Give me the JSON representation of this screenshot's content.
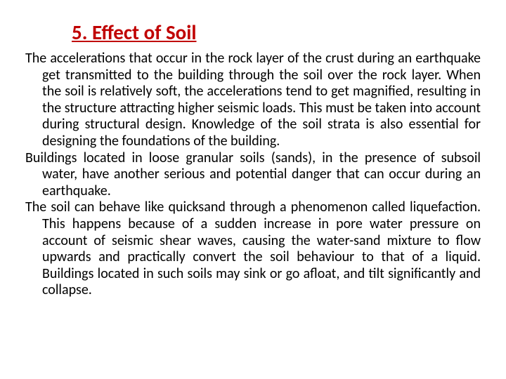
{
  "title": "5. Effect of Soil",
  "paragraphs": [
    "The accelerations that occur in the rock layer of the crust during an earthquake get transmitted to the building through the soil over the rock layer. When the soil is relatively soft, the accelerations tend to get magnified, resulting in the structure attracting higher seismic loads. This must be taken into account during structural design. Knowledge of the soil strata is also essential for designing the foundations of the building.",
    "Buildings located in loose granular soils (sands), in the presence of subsoil water, have another serious and potential danger that can occur during an earthquake.",
    "The soil can behave like quicksand through a phenomenon called liquefaction. This happens because of a sudden increase in pore water pressure on account of seismic shear waves, causing the water-sand mixture to flow upwards and practically convert the soil behaviour to that of a liquid. Buildings located in such soils may sink or go afloat, and tilt significantly and collapse."
  ],
  "colors": {
    "title": "#c00000",
    "text": "#000000",
    "background": "#ffffff"
  },
  "typography": {
    "title_fontsize": 29,
    "body_fontsize": 20,
    "title_weight": "bold",
    "title_underline": true,
    "body_align": "justify",
    "font_family": "Calibri"
  }
}
